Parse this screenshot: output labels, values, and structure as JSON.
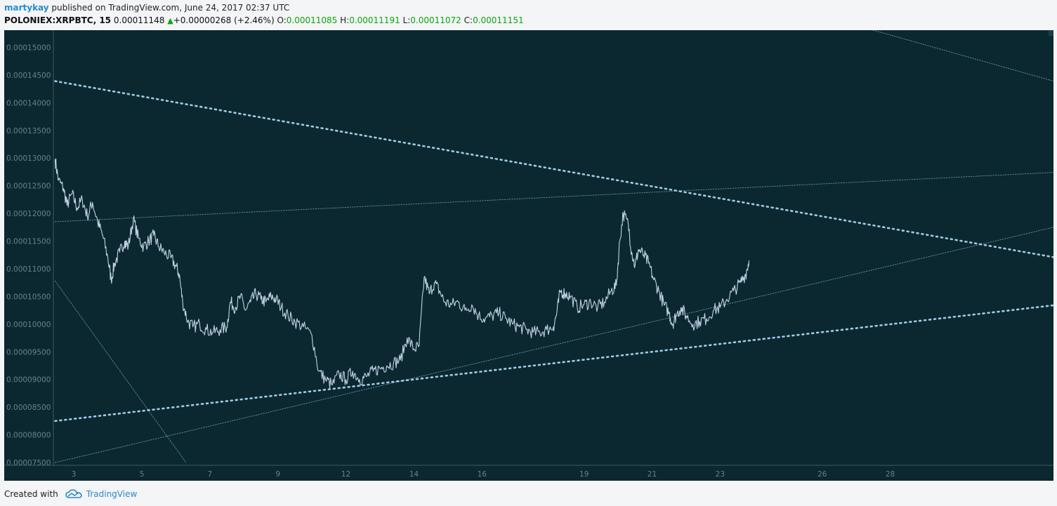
{
  "header": {
    "author": "martykay",
    "published_text": " published on TradingView.com, June 24, 2017 02:37 UTC",
    "symbol": "POLONIEX:XRPBTC, 15",
    "last": "0.00011148",
    "change": "+0.00000268 (+2.46%)",
    "o_label": "O:",
    "o_value": "0.00011085",
    "h_label": "H:",
    "h_value": "0.00011191",
    "l_label": "L:",
    "l_value": "0.00011072",
    "c_label": "C:",
    "c_value": "0.00011151"
  },
  "footer": {
    "created_with": "Created with",
    "brand": "TradingView",
    "logo_icon": "tradingview-cloud-icon"
  },
  "colors": {
    "background": "#0b2830",
    "price": "#c2d2e6",
    "trendline": "#a8d6ee",
    "axis_text": "#6b8088",
    "axis_line": "#3c5a62",
    "up": "#0aa60a"
  },
  "chart_data": {
    "type": "line",
    "title": "POLONIEX:XRPBTC, 15",
    "xlabel": "",
    "ylabel": "",
    "xlim": [
      2.4,
      31.8
    ],
    "ylim": [
      7.45e-05,
      0.0001531
    ],
    "y_ticks": [
      "0.00015000",
      "0.00014500",
      "0.00014000",
      "0.00013500",
      "0.00013000",
      "0.00012500",
      "0.00012000",
      "0.00011500",
      "0.00011000",
      "0.00010500",
      "0.00010000",
      "0.00009500",
      "0.00009000",
      "0.00008500",
      "0.00008000",
      "0.00007500"
    ],
    "x_ticks": [
      {
        "label": "3",
        "x": 3
      },
      {
        "label": "5",
        "x": 5
      },
      {
        "label": "7",
        "x": 7
      },
      {
        "label": "9",
        "x": 9
      },
      {
        "label": "12",
        "x": 11
      },
      {
        "label": "14",
        "x": 13
      },
      {
        "label": "16",
        "x": 15
      },
      {
        "label": "19",
        "x": 18
      },
      {
        "label": "21",
        "x": 20
      },
      {
        "label": "23",
        "x": 22
      },
      {
        "label": "26",
        "x": 25
      },
      {
        "label": "28",
        "x": 27
      }
    ],
    "series": [
      {
        "points": [
          [
            2.45,
            0.0001298
          ],
          [
            2.55,
            0.000126
          ],
          [
            2.7,
            0.0001245
          ],
          [
            2.8,
            0.0001215
          ],
          [
            2.95,
            0.0001235
          ],
          [
            3.1,
            0.000121
          ],
          [
            3.25,
            0.0001225
          ],
          [
            3.4,
            0.0001195
          ],
          [
            3.55,
            0.000122
          ],
          [
            3.7,
            0.0001185
          ],
          [
            3.85,
            0.000116
          ],
          [
            4.0,
            0.000112
          ],
          [
            4.1,
            0.000108
          ],
          [
            4.2,
            0.000111
          ],
          [
            4.35,
            0.000113
          ],
          [
            4.5,
            0.000115
          ],
          [
            4.6,
            0.000114
          ],
          [
            4.75,
            0.000119
          ],
          [
            4.9,
            0.0001155
          ],
          [
            5.05,
            0.000114
          ],
          [
            5.2,
            0.000115
          ],
          [
            5.35,
            0.000116
          ],
          [
            5.5,
            0.000114
          ],
          [
            5.65,
            0.000113
          ],
          [
            5.85,
            0.000112
          ],
          [
            6.0,
            0.0001105
          ],
          [
            6.1,
            0.000109
          ],
          [
            6.2,
            0.000104
          ],
          [
            6.35,
            0.0001005
          ],
          [
            6.5,
            9.95e-05
          ],
          [
            6.7,
            0.0001
          ],
          [
            6.9,
            9.9e-05
          ],
          [
            7.1,
            9.85e-05
          ],
          [
            7.3,
            9.9e-05
          ],
          [
            7.5,
            9.95e-05
          ],
          [
            7.6,
            0.000104
          ],
          [
            7.75,
            0.000103
          ],
          [
            7.9,
            0.000105
          ],
          [
            8.05,
            0.0001025
          ],
          [
            8.2,
            0.000104
          ],
          [
            8.35,
            0.0001055
          ],
          [
            8.5,
            0.0001045
          ],
          [
            8.65,
            0.000104
          ],
          [
            8.8,
            0.000105
          ],
          [
            8.95,
            0.0001045
          ],
          [
            9.1,
            0.000103
          ],
          [
            9.3,
            0.0001015
          ],
          [
            9.5,
            0.0001005
          ],
          [
            9.75,
            9.95e-05
          ],
          [
            10.0,
            9.8e-05
          ],
          [
            10.2,
            9.15e-05
          ],
          [
            10.4,
            9e-05
          ],
          [
            10.6,
            8.9e-05
          ],
          [
            10.8,
            9.1e-05
          ],
          [
            11.0,
            9e-05
          ],
          [
            11.2,
            9.15e-05
          ],
          [
            11.4,
            9e-05
          ],
          [
            11.6,
            9.05e-05
          ],
          [
            11.8,
            9.15e-05
          ],
          [
            12.0,
            9.2e-05
          ],
          [
            12.2,
            9.25e-05
          ],
          [
            12.4,
            9.3e-05
          ],
          [
            12.6,
            9.35e-05
          ],
          [
            12.8,
            9.75e-05
          ],
          [
            13.0,
            9.55e-05
          ],
          [
            13.15,
            9.6e-05
          ],
          [
            13.3,
            0.0001085
          ],
          [
            13.45,
            0.0001055
          ],
          [
            13.6,
            0.0001075
          ],
          [
            13.75,
            0.000106
          ],
          [
            13.9,
            0.000104
          ],
          [
            14.1,
            0.0001035
          ],
          [
            14.3,
            0.000104
          ],
          [
            14.5,
            0.0001025
          ],
          [
            14.7,
            0.0001035
          ],
          [
            14.9,
            0.0001015
          ],
          [
            15.1,
            0.000101
          ],
          [
            15.3,
            0.0001015
          ],
          [
            15.5,
            0.000102
          ],
          [
            15.7,
            0.000101
          ],
          [
            15.9,
            0.0001
          ],
          [
            16.1,
            9.95e-05
          ],
          [
            16.3,
            9.9e-05
          ],
          [
            16.5,
            9.85e-05
          ],
          [
            16.7,
            9.85e-05
          ],
          [
            16.9,
            9.9e-05
          ],
          [
            17.1,
            9.95e-05
          ],
          [
            17.2,
            0.000102
          ],
          [
            17.3,
            0.000106
          ],
          [
            17.45,
            0.0001055
          ],
          [
            17.6,
            0.000105
          ],
          [
            17.8,
            0.000103
          ],
          [
            18.0,
            0.0001035
          ],
          [
            18.2,
            0.000104
          ],
          [
            18.4,
            0.000103
          ],
          [
            18.6,
            0.000104
          ],
          [
            18.8,
            0.000106
          ],
          [
            18.95,
            0.000107
          ],
          [
            19.05,
            0.000115
          ],
          [
            19.15,
            0.00012
          ],
          [
            19.3,
            0.000118
          ],
          [
            19.4,
            0.000113
          ],
          [
            19.5,
            0.0001105
          ],
          [
            19.6,
            0.0001135
          ],
          [
            19.75,
            0.0001125
          ],
          [
            19.9,
            0.000111
          ],
          [
            20.05,
            0.000108
          ],
          [
            20.2,
            0.000106
          ],
          [
            20.35,
            0.0001035
          ],
          [
            20.5,
            0.000102
          ],
          [
            20.6,
            0.0001
          ],
          [
            20.7,
            0.0001015
          ],
          [
            20.85,
            0.000103
          ],
          [
            21.0,
            0.0001015
          ],
          [
            21.2,
            0.0001
          ],
          [
            21.4,
            0.0001005
          ],
          [
            21.6,
            0.000101
          ],
          [
            21.8,
            0.0001025
          ],
          [
            22.0,
            0.000103
          ],
          [
            22.2,
            0.0001045
          ],
          [
            22.4,
            0.000106
          ],
          [
            22.6,
            0.0001075
          ],
          [
            22.75,
            0.000109
          ],
          [
            22.85,
            0.0001115
          ]
        ]
      }
    ],
    "trendlines": [
      {
        "style": "dotted-thick",
        "x": [
          2.45,
          31.8
        ],
        "y": [
          0.0001439,
          0.0001121
        ]
      },
      {
        "style": "dotted-thick",
        "x": [
          2.45,
          31.8
        ],
        "y": [
          8.25e-05,
          0.0001034
        ]
      },
      {
        "style": "dotted-thin",
        "x": [
          2.45,
          31.8
        ],
        "y": [
          0.0001185,
          0.0001274
        ]
      },
      {
        "style": "dotted-thin",
        "x": [
          2.45,
          31.8
        ],
        "y": [
          7.5e-05,
          0.0001175
        ]
      },
      {
        "style": "dotted-thin",
        "x": [
          2.45,
          6.3
        ],
        "y": [
          0.0001078,
          7.5e-05
        ]
      },
      {
        "style": "dotted-thin",
        "x": [
          26.5,
          31.8
        ],
        "y": [
          0.0001531,
          0.0001439
        ]
      }
    ]
  }
}
